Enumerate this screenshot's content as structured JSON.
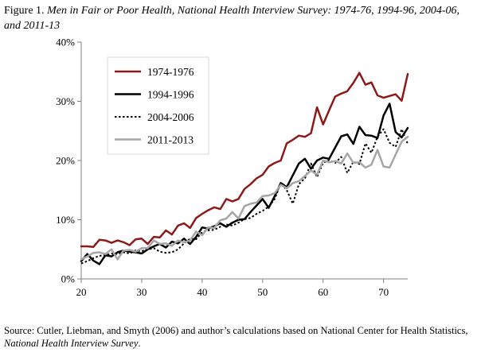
{
  "figure": {
    "label": "Figure 1.",
    "title": "Men in Fair or Poor Health, National Health Interview Survey: 1974-76, 1994-96, 2004-06, and 2011-13"
  },
  "source": {
    "text": "Source: Cutler, Liebman, and Smyth (2006) and author’s calculations based on National Center for Health Statistics,",
    "italic": "National Health Interview Survey",
    "end": "."
  },
  "chart_data": {
    "type": "line",
    "title": "",
    "xlabel": "",
    "ylabel": "",
    "xlim": [
      20,
      74
    ],
    "ylim": [
      0,
      40
    ],
    "x_ticks": [
      20,
      30,
      40,
      50,
      60,
      70
    ],
    "y_ticks": [
      0,
      10,
      20,
      30,
      40
    ],
    "y_tick_labels": [
      "0%",
      "10%",
      "20%",
      "30%",
      "40%"
    ],
    "grid": false,
    "legend_position": "top-left",
    "x": [
      20,
      21,
      22,
      23,
      24,
      25,
      26,
      27,
      28,
      29,
      30,
      31,
      32,
      33,
      34,
      35,
      36,
      37,
      38,
      39,
      40,
      41,
      42,
      43,
      44,
      45,
      46,
      47,
      48,
      49,
      50,
      51,
      52,
      53,
      54,
      55,
      56,
      57,
      58,
      59,
      60,
      61,
      62,
      63,
      64,
      65,
      66,
      67,
      68,
      69,
      70,
      71,
      72,
      73,
      74
    ],
    "series": [
      {
        "name": "1974-1976",
        "color": "#8b1a1a",
        "dash": "solid",
        "values": [
          5.5,
          5.5,
          5.4,
          6.6,
          6.5,
          6.1,
          6.5,
          6.2,
          5.7,
          6.7,
          6.8,
          5.9,
          7.1,
          7.0,
          8.2,
          7.5,
          9.0,
          9.4,
          8.6,
          10.3,
          11.0,
          11.6,
          12.1,
          11.8,
          13.5,
          13.1,
          13.5,
          15.2,
          16.0,
          17.0,
          17.6,
          19.0,
          19.6,
          20.0,
          22.9,
          23.5,
          24.2,
          24.0,
          24.6,
          29.0,
          26.1,
          28.5,
          30.8,
          31.3,
          31.7,
          33.1,
          34.8,
          32.8,
          33.2,
          31.0,
          30.6,
          30.9,
          31.2,
          30.1,
          34.6
        ]
      },
      {
        "name": "1994-1996",
        "color": "#000000",
        "dash": "solid",
        "values": [
          3.0,
          4.2,
          3.1,
          2.5,
          4.0,
          3.8,
          4.5,
          4.8,
          4.6,
          4.5,
          4.3,
          5.0,
          5.5,
          5.9,
          5.3,
          6.3,
          6.0,
          6.8,
          5.9,
          7.1,
          8.7,
          8.5,
          8.9,
          9.4,
          8.8,
          9.5,
          10.0,
          10.1,
          11.3,
          12.4,
          13.5,
          12.0,
          14.0,
          16.2,
          15.5,
          17.5,
          19.5,
          20.3,
          18.6,
          20.0,
          20.5,
          20.3,
          22.2,
          24.1,
          24.4,
          22.8,
          25.7,
          24.3,
          24.2,
          23.8,
          27.6,
          29.6,
          24.8,
          23.9,
          25.5
        ]
      },
      {
        "name": "2004-2006",
        "color": "#000000",
        "dash": "dotted",
        "values": [
          2.6,
          3.0,
          3.5,
          3.9,
          4.0,
          4.3,
          4.2,
          4.5,
          4.3,
          4.8,
          4.7,
          5.0,
          5.2,
          4.6,
          4.4,
          4.5,
          5.0,
          6.0,
          6.8,
          6.7,
          7.9,
          8.2,
          8.3,
          8.8,
          9.2,
          9.0,
          9.5,
          10.1,
          10.3,
          11.0,
          11.5,
          12.2,
          13.5,
          16.2,
          15.0,
          12.7,
          16.0,
          17.0,
          19.5,
          17.2,
          19.6,
          20.1,
          19.6,
          20.6,
          17.9,
          19.8,
          19.4,
          22.9,
          21.3,
          24.0,
          25.3,
          23.0,
          22.3,
          25.3,
          22.8
        ]
      },
      {
        "name": "2011-2013",
        "color": "#a6a6a6",
        "dash": "solid",
        "values": [
          3.3,
          3.8,
          4.4,
          4.5,
          4.2,
          5.0,
          3.3,
          4.8,
          4.9,
          4.6,
          5.2,
          5.2,
          6.5,
          5.9,
          6.0,
          5.6,
          6.5,
          6.2,
          6.5,
          8.0,
          7.4,
          8.7,
          8.6,
          9.9,
          10.2,
          11.3,
          10.2,
          12.3,
          12.7,
          12.9,
          14.0,
          14.1,
          14.5,
          15.9,
          15.3,
          16.2,
          16.5,
          17.4,
          18.3,
          17.6,
          20.0,
          19.7,
          19.9,
          19.5,
          21.2,
          19.6,
          19.7,
          18.8,
          19.3,
          21.8,
          19.0,
          18.8,
          21.0,
          23.2,
          24.0
        ]
      }
    ]
  }
}
